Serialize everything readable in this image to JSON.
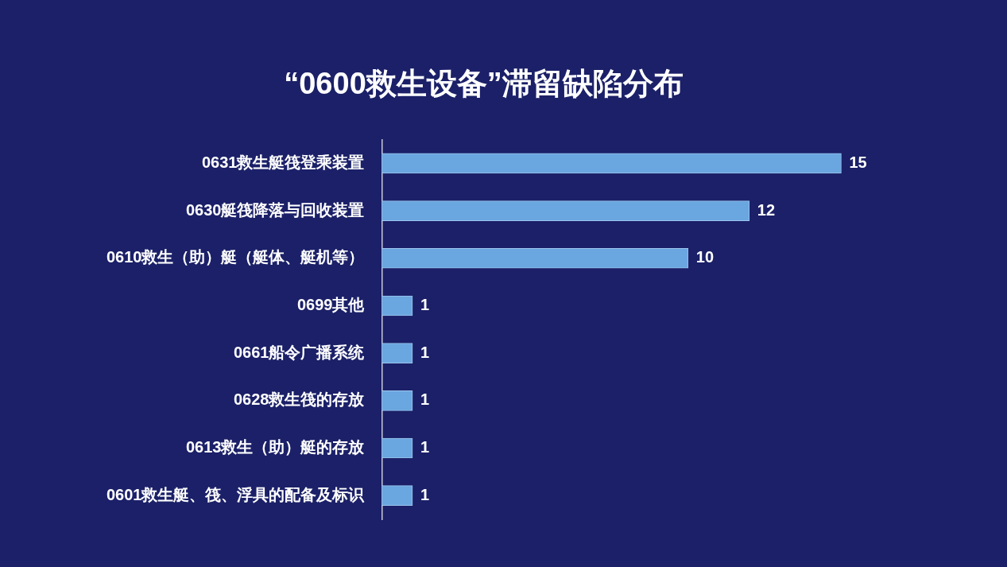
{
  "chart_data": {
    "type": "bar",
    "orientation": "horizontal",
    "title": "“0600救生设备”滞留缺陷分布",
    "categories": [
      "0631救生艇筏登乘装置",
      "0630艇筏降落与回收装置",
      "0610救生（助）艇（艇体、艇机等）",
      "0699其他",
      "0661船令广播系统",
      "0628救生筏的存放",
      "0613救生（助）艇的存放",
      "0601救生艇、筏、浮具的配备及标识"
    ],
    "values": [
      15,
      12,
      10,
      1,
      1,
      1,
      1,
      1
    ],
    "color": "#6aa6e0",
    "data_labels": true,
    "legend": false,
    "tick_labels": "y"
  }
}
